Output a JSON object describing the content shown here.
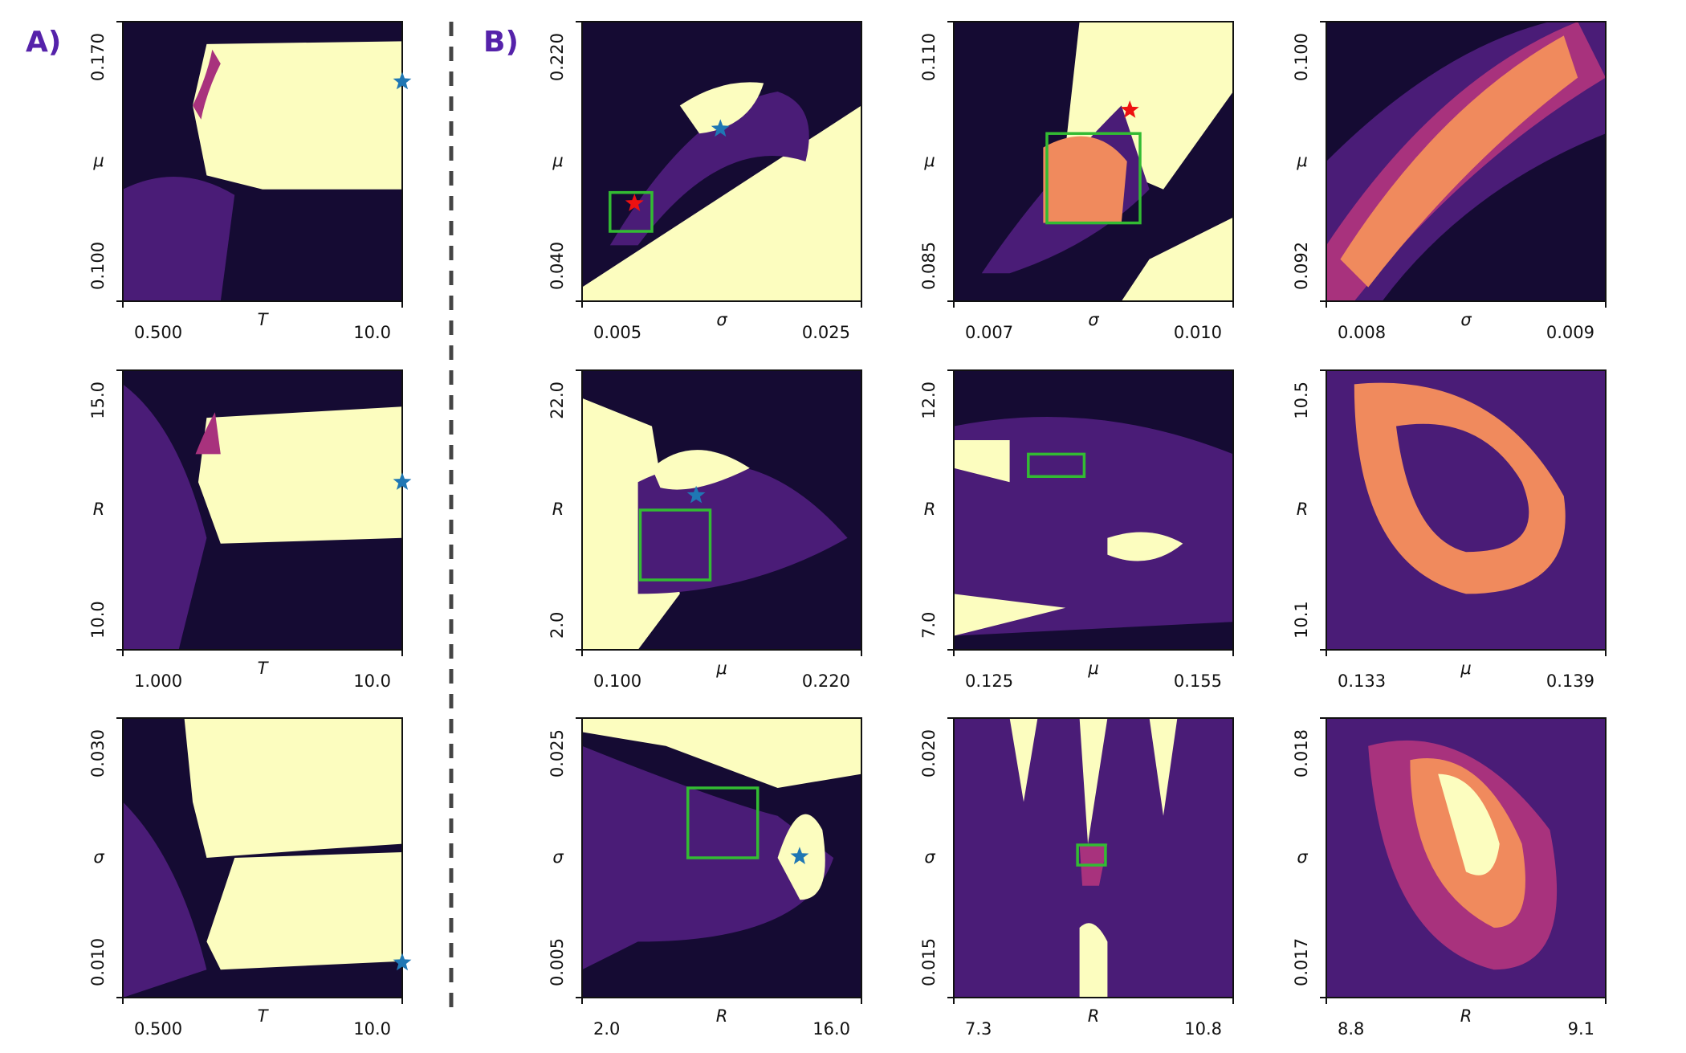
{
  "panel_labels": [
    "A)",
    "B)"
  ],
  "chart_data": [
    {
      "type": "heatmap",
      "xlabel": "T",
      "ylabel": "μ",
      "xlim": [
        0.5,
        10
      ],
      "xticks": [
        {
          "value": 0.5,
          "label": "0.500"
        },
        {
          "value": 10,
          "label": "10.0"
        }
      ],
      "ylim": [
        0.1,
        0.17
      ],
      "yticks": [
        {
          "value": 0.1,
          "label": "0.100"
        },
        {
          "value": 0.17,
          "label": "0.170"
        }
      ],
      "markers": [
        {
          "x": 10,
          "y": 0.155,
          "color": "#1f77b4"
        }
      ],
      "boxes": []
    },
    {
      "type": "heatmap",
      "xlabel": "T",
      "ylabel": "R",
      "xlim": [
        1,
        10
      ],
      "xticks": [
        {
          "value": 1,
          "label": "1.000"
        },
        {
          "value": 10,
          "label": "10.0"
        }
      ],
      "ylim": [
        10,
        15
      ],
      "yticks": [
        {
          "value": 10,
          "label": "10.0"
        },
        {
          "value": 15,
          "label": "15.0"
        }
      ],
      "markers": [
        {
          "x": 10,
          "y": 13.0,
          "color": "#1f77b4"
        }
      ],
      "boxes": []
    },
    {
      "type": "heatmap",
      "xlabel": "T",
      "ylabel": "σ",
      "xlim": [
        0.5,
        10
      ],
      "xticks": [
        {
          "value": 0.5,
          "label": "0.500"
        },
        {
          "value": 10,
          "label": "10.0"
        }
      ],
      "ylim": [
        0.01,
        0.03
      ],
      "yticks": [
        {
          "value": 0.01,
          "label": "0.010"
        },
        {
          "value": 0.03,
          "label": "0.030"
        }
      ],
      "markers": [
        {
          "x": 10,
          "y": 0.0125,
          "color": "#1f77b4"
        }
      ],
      "boxes": []
    },
    {
      "type": "heatmap",
      "xlabel": "σ",
      "ylabel": "μ",
      "xlim": [
        0.005,
        0.025
      ],
      "xticks": [
        0.005,
        0.025
      ],
      "ylim": [
        0.04,
        0.22
      ],
      "yticks": [
        {
          "value": 0.04,
          "label": "0.040"
        },
        {
          "value": 0.22,
          "label": "0.220"
        }
      ],
      "markers": [
        {
          "x": 0.0149,
          "y": 0.151,
          "color": "#1f77b4"
        },
        {
          "x": 0.00875,
          "y": 0.103,
          "color": "#ee1111"
        }
      ],
      "boxes": [
        {
          "x": [
            0.007,
            0.01
          ],
          "y": [
            0.085,
            0.11
          ],
          "color": "#33bb33"
        }
      ]
    },
    {
      "type": "heatmap",
      "xlabel": "σ",
      "ylabel": "μ",
      "xlim": [
        0.007,
        0.01
      ],
      "xticks": [
        {
          "value": 0.007,
          "label": "0.007"
        },
        {
          "value": 0.01,
          "label": "0.010"
        }
      ],
      "ylim": [
        0.085,
        0.11
      ],
      "yticks": [
        0.085,
        {
          "value": 0.11,
          "label": "0.110"
        }
      ],
      "markers": [
        {
          "x": 0.00889,
          "y": 0.1021,
          "color": "#ee1111"
        }
      ],
      "boxes": [
        {
          "x": [
            0.008,
            0.009
          ],
          "y": [
            0.092,
            0.1
          ],
          "color": "#33bb33"
        }
      ]
    },
    {
      "type": "heatmap",
      "xlabel": "σ",
      "ylabel": "μ",
      "xlim": [
        0.008,
        0.009
      ],
      "xticks": [
        0.008,
        0.009
      ],
      "ylim": [
        0.092,
        0.1
      ],
      "yticks": [
        0.092,
        {
          "value": 0.1,
          "label": "0.100"
        }
      ],
      "markers": [],
      "boxes": []
    },
    {
      "type": "heatmap",
      "xlabel": "μ",
      "ylabel": "R",
      "xlim": [
        0.1,
        0.22
      ],
      "xticks": [
        {
          "value": 0.1,
          "label": "0.100"
        },
        {
          "value": 0.22,
          "label": "0.220"
        }
      ],
      "ylim": [
        2,
        22
      ],
      "yticks": [
        {
          "value": 2,
          "label": "2.0"
        },
        {
          "value": 22,
          "label": "22.0"
        }
      ],
      "markers": [
        {
          "x": 0.149,
          "y": 13.05,
          "color": "#1f77b4"
        }
      ],
      "boxes": [
        {
          "x": [
            0.125,
            0.155
          ],
          "y": [
            7,
            12
          ],
          "color": "#33bb33"
        }
      ]
    },
    {
      "type": "heatmap",
      "xlabel": "μ",
      "ylabel": "R",
      "xlim": [
        0.125,
        0.155
      ],
      "xticks": [
        0.125,
        0.155
      ],
      "ylim": [
        7,
        12
      ],
      "yticks": [
        {
          "value": 7,
          "label": "7.0"
        },
        {
          "value": 12,
          "label": "12.0"
        }
      ],
      "markers": [],
      "boxes": [
        {
          "x": [
            0.133,
            0.139
          ],
          "y": [
            10.1,
            10.5
          ],
          "color": "#33bb33"
        }
      ]
    },
    {
      "type": "heatmap",
      "xlabel": "μ",
      "ylabel": "R",
      "xlim": [
        0.133,
        0.139
      ],
      "xticks": [
        0.133,
        0.139
      ],
      "ylim": [
        10.1,
        10.5
      ],
      "yticks": [
        10.1,
        10.5
      ],
      "markers": [],
      "boxes": []
    },
    {
      "type": "heatmap",
      "xlabel": "R",
      "ylabel": "σ",
      "xlim": [
        2,
        16
      ],
      "xticks": [
        {
          "value": 2,
          "label": "2.0"
        },
        {
          "value": 16,
          "label": "16.0"
        }
      ],
      "ylim": [
        0.005,
        0.025
      ],
      "yticks": [
        0.005,
        0.025
      ],
      "markers": [
        {
          "x": 12.9,
          "y": 0.0151,
          "color": "#1f77b4"
        }
      ],
      "boxes": [
        {
          "x": [
            7.3,
            10.8
          ],
          "y": [
            0.015,
            0.02
          ],
          "color": "#33bb33"
        }
      ]
    },
    {
      "type": "heatmap",
      "xlabel": "R",
      "ylabel": "σ",
      "xlim": [
        7.3,
        10.8
      ],
      "xticks": [
        7.3,
        10.8
      ],
      "ylim": [
        0.015,
        0.02
      ],
      "yticks": [
        0.015,
        {
          "value": 0.02,
          "label": "0.020"
        }
      ],
      "markers": [],
      "boxes": [
        {
          "x": [
            8.85,
            9.2
          ],
          "y": [
            0.01737,
            0.01773
          ],
          "color": "#33bb33"
        }
      ]
    },
    {
      "type": "heatmap",
      "xlabel": "R",
      "ylabel": "σ",
      "xlim": [
        8.8,
        9.1
      ],
      "xticks": [
        8.8,
        9.1
      ],
      "ylim": [
        0.017,
        0.018
      ],
      "yticks": [
        0.017,
        0.018
      ],
      "markers": [],
      "boxes": []
    }
  ]
}
